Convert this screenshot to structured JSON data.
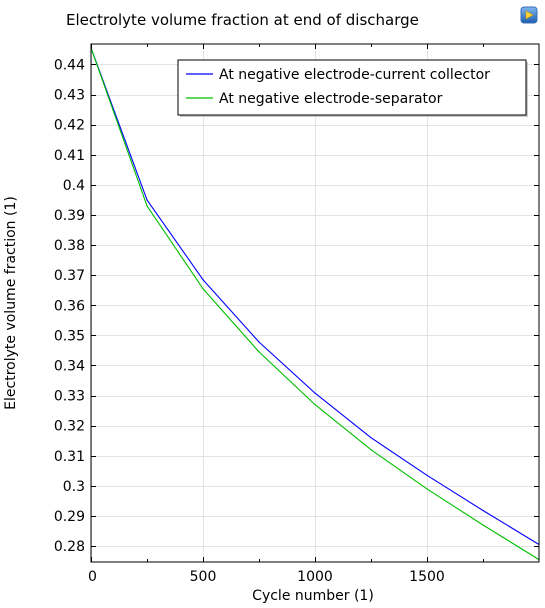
{
  "chart_data": {
    "type": "line",
    "title": "Electrolyte volume fraction at end of discharge",
    "xlabel": "Cycle number (1)",
    "ylabel": "Electrolyte volume fraction (1)",
    "xlim": [
      0,
      2000
    ],
    "ylim": [
      0.2747,
      0.4468
    ],
    "xticks": [
      0,
      500,
      1000,
      1500
    ],
    "xtick_labels": [
      "0",
      "500",
      "1000",
      "1500"
    ],
    "yticks": [
      0.28,
      0.29,
      0.3,
      0.31,
      0.32,
      0.33,
      0.34,
      0.35,
      0.36,
      0.37,
      0.38,
      0.39,
      0.4,
      0.41,
      0.42,
      0.43,
      0.44
    ],
    "ytick_labels": [
      "0.28",
      "0.29",
      "0.3",
      "0.31",
      "0.32",
      "0.33",
      "0.34",
      "0.35",
      "0.36",
      "0.37",
      "0.38",
      "0.39",
      "0.4",
      "0.41",
      "0.42",
      "0.43",
      "0.44"
    ],
    "grid": true,
    "legend_position": "top-right",
    "series": [
      {
        "name": "At negative electrode-current collector",
        "color": "#0000ff",
        "x": [
          0,
          250,
          500,
          750,
          1000,
          1250,
          1500,
          1750,
          2000
        ],
        "values": [
          0.4455,
          0.395,
          0.3685,
          0.3478,
          0.3308,
          0.316,
          0.3035,
          0.2918,
          0.2805
        ]
      },
      {
        "name": "At negative electrode-separator",
        "color": "#00c000",
        "x": [
          0,
          250,
          500,
          750,
          1000,
          1250,
          1500,
          1750,
          2000
        ],
        "values": [
          0.4455,
          0.393,
          0.3655,
          0.3445,
          0.327,
          0.312,
          0.299,
          0.287,
          0.2755
        ]
      }
    ]
  }
}
